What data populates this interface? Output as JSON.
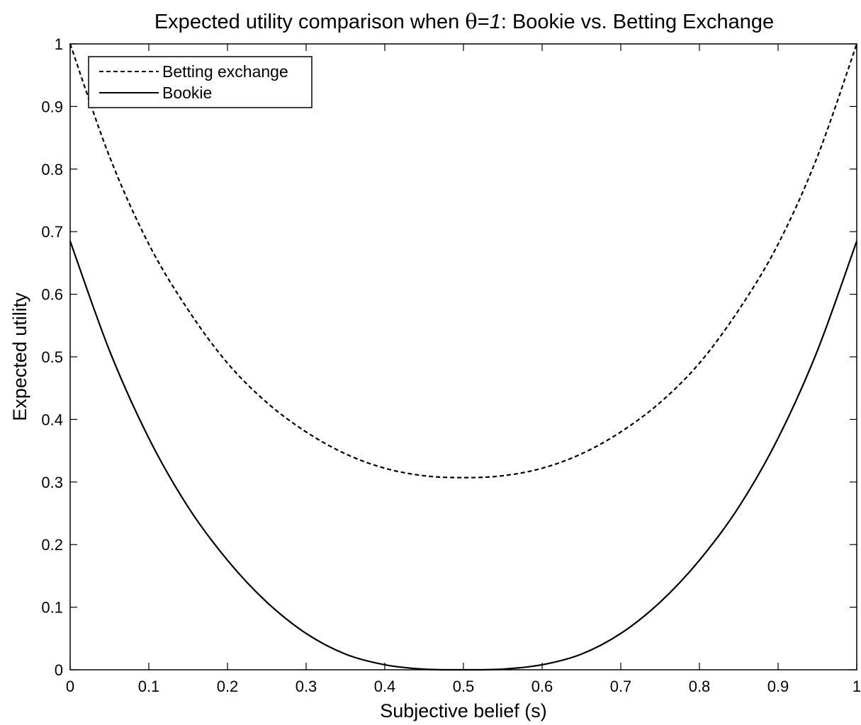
{
  "chart_data": {
    "type": "line",
    "title": {
      "prefix": "Expected utility comparison when ",
      "symbol": "θ",
      "equals": "=",
      "value": "1",
      "suffix": ": Bookie vs. Betting Exchange"
    },
    "xlabel": "Subjective belief (s)",
    "ylabel": "Expected utility",
    "xlim": [
      0,
      1
    ],
    "ylim": [
      0,
      1
    ],
    "xticks": [
      0,
      0.1,
      0.2,
      0.3,
      0.4,
      0.5,
      0.6,
      0.7,
      0.8,
      0.9,
      1
    ],
    "yticks": [
      0,
      0.1,
      0.2,
      0.3,
      0.4,
      0.5,
      0.6,
      0.7,
      0.8,
      0.9,
      1
    ],
    "xtick_labels": [
      "0",
      "0.1",
      "0.2",
      "0.3",
      "0.4",
      "0.5",
      "0.6",
      "0.7",
      "0.8",
      "0.9",
      "1"
    ],
    "ytick_labels": [
      "0",
      "0.1",
      "0.2",
      "0.3",
      "0.4",
      "0.5",
      "0.6",
      "0.7",
      "0.8",
      "0.9",
      "1"
    ],
    "grid": false,
    "legend_position": "top-left",
    "series": [
      {
        "name": "Betting exchange",
        "style": "dashed",
        "color": "#000000",
        "x": [
          0,
          0.05,
          0.1,
          0.15,
          0.2,
          0.25,
          0.3,
          0.35,
          0.4,
          0.45,
          0.5,
          0.55,
          0.6,
          0.65,
          0.7,
          0.75,
          0.8,
          0.85,
          0.9,
          0.95,
          1
        ],
        "y": [
          1.0,
          0.82,
          0.68,
          0.575,
          0.49,
          0.427,
          0.38,
          0.345,
          0.322,
          0.31,
          0.307,
          0.31,
          0.322,
          0.345,
          0.38,
          0.427,
          0.49,
          0.575,
          0.68,
          0.82,
          1.0
        ]
      },
      {
        "name": "Bookie",
        "style": "solid",
        "color": "#000000",
        "x": [
          0,
          0.05,
          0.1,
          0.15,
          0.2,
          0.25,
          0.3,
          0.35,
          0.4,
          0.45,
          0.5,
          0.55,
          0.6,
          0.65,
          0.7,
          0.75,
          0.8,
          0.85,
          0.9,
          0.95,
          1
        ],
        "y": [
          0.685,
          0.51,
          0.37,
          0.26,
          0.175,
          0.108,
          0.058,
          0.025,
          0.008,
          0.001,
          0.0,
          0.001,
          0.008,
          0.025,
          0.058,
          0.108,
          0.175,
          0.26,
          0.37,
          0.51,
          0.685
        ]
      }
    ]
  }
}
